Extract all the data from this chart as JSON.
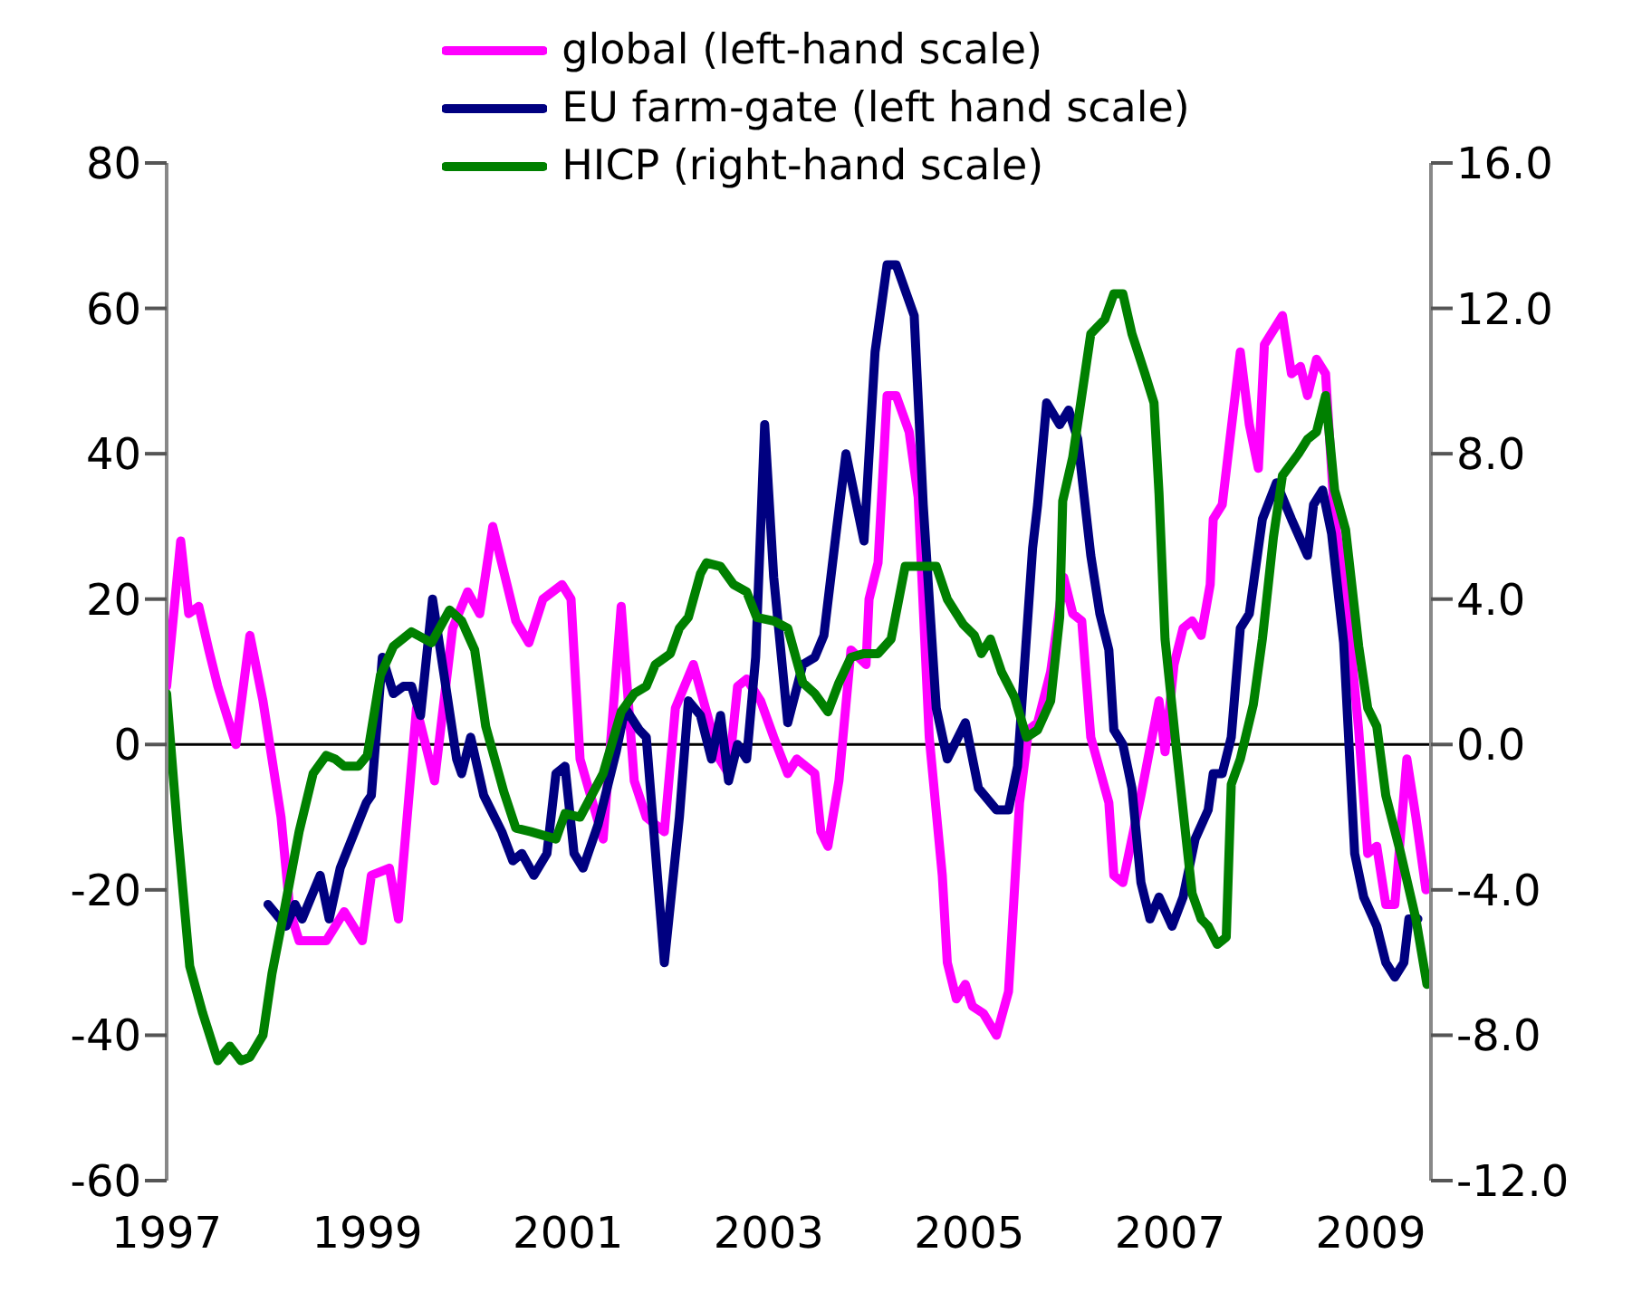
{
  "chart_data": {
    "type": "line",
    "xlim": [
      1997,
      2009.6
    ],
    "xticks": [
      1997,
      1999,
      2001,
      2003,
      2005,
      2007,
      2009
    ],
    "ylim": [
      -60,
      80
    ],
    "yticks": [
      -60,
      -40,
      -20,
      0,
      20,
      40,
      60,
      80
    ],
    "y2lim": [
      -12,
      16
    ],
    "y2ticks": [
      {
        "value": -12,
        "label": "-12.0"
      },
      {
        "value": -8,
        "label": "-8.0"
      },
      {
        "value": -4,
        "label": "-4.0"
      },
      {
        "value": 0,
        "label": "0.0"
      },
      {
        "value": 4,
        "label": "4.0"
      },
      {
        "value": 8,
        "label": "8.0"
      },
      {
        "value": 12,
        "label": "12.0"
      },
      {
        "value": 16,
        "label": "16.0"
      }
    ],
    "legend": "top",
    "marker": "none",
    "line_style": "solid",
    "ref_lines": [
      {
        "axis": "y",
        "value": 0,
        "color": "#000000"
      }
    ],
    "series": [
      {
        "name": "global (left-hand scale)",
        "color": "#ff00ff",
        "x": [
          1997.0,
          1997.14,
          1997.22,
          1997.32,
          1997.42,
          1997.51,
          1997.69,
          1997.83,
          1997.96,
          1998.14,
          1998.23,
          1998.32,
          1998.59,
          1998.77,
          1998.95,
          1999.04,
          1999.22,
          1999.31,
          1999.49,
          1999.67,
          1999.85,
          2000.0,
          2000.12,
          2000.25,
          2000.48,
          2000.61,
          2000.75,
          2000.94,
          2001.03,
          2001.12,
          2001.35,
          2001.53,
          2001.66,
          2001.78,
          2001.96,
          2002.07,
          2002.25,
          2002.51,
          2002.6,
          2002.69,
          2002.78,
          2002.92,
          2003.05,
          2003.19,
          2003.28,
          2003.46,
          2003.52,
          2003.59,
          2003.7,
          2003.82,
          2003.97,
          2004.0,
          2004.09,
          2004.18,
          2004.27,
          2004.4,
          2004.49,
          2004.6,
          2004.73,
          2004.78,
          2004.87,
          2004.96,
          2005.03,
          2005.14,
          2005.27,
          2005.39,
          2005.5,
          2005.59,
          2005.68,
          2005.81,
          2005.94,
          2006.03,
          2006.12,
          2006.21,
          2006.39,
          2006.44,
          2006.53,
          2006.71,
          2006.89,
          2006.95,
          2007.04,
          2007.13,
          2007.22,
          2007.31,
          2007.4,
          2007.43,
          2007.52,
          2007.7,
          2007.79,
          2007.88,
          2007.94,
          2008.12,
          2008.21,
          2008.3,
          2008.37,
          2008.46,
          2008.55,
          2008.64,
          2008.75,
          2008.88,
          2008.97,
          2009.06,
          2009.15,
          2009.24,
          2009.36,
          2009.45,
          2009.55
        ],
        "values": [
          8,
          28,
          18,
          19,
          13,
          8,
          0,
          15,
          6,
          -10,
          -23,
          -27,
          -27,
          -23,
          -27,
          -18,
          -17,
          -24,
          5,
          -5,
          16,
          21,
          18,
          30,
          17,
          14,
          20,
          22,
          20,
          -2,
          -13,
          19,
          -5,
          -10,
          -12,
          5,
          11,
          -2,
          -4,
          8,
          9,
          6,
          1,
          -4,
          -2,
          -4,
          -12,
          -14,
          -5,
          13,
          11,
          20,
          25,
          48,
          48,
          43,
          34,
          1,
          -18,
          -30,
          -35,
          -33,
          -36,
          -37,
          -40,
          -34,
          -8,
          2,
          3,
          10,
          23,
          18,
          17,
          1,
          -8,
          -18,
          -19,
          -7,
          6,
          -1,
          11,
          16,
          17,
          15,
          22,
          31,
          33,
          54,
          44,
          38,
          55,
          59,
          51,
          52,
          48,
          53,
          51,
          31,
          21,
          2,
          -15,
          -14,
          -22,
          -22,
          -2,
          -10,
          -20
        ]
      },
      {
        "name": "EU farm-gate (left hand scale)",
        "color": "#000080",
        "x": [
          1998.01,
          1998.19,
          1998.28,
          1998.35,
          1998.53,
          1998.62,
          1998.73,
          1998.99,
          1999.04,
          1999.15,
          1999.26,
          1999.36,
          1999.44,
          1999.53,
          1999.65,
          1999.76,
          1999.89,
          1999.94,
          2000.03,
          2000.16,
          2000.34,
          2000.45,
          2000.54,
          2000.66,
          2000.79,
          2000.88,
          2000.97,
          2001.06,
          2001.15,
          2001.3,
          2001.48,
          2001.57,
          2001.71,
          2001.78,
          2001.96,
          2002.11,
          2002.2,
          2002.32,
          2002.43,
          2002.52,
          2002.6,
          2002.69,
          2002.78,
          2002.87,
          2002.96,
          2003.05,
          2003.19,
          2003.34,
          2003.46,
          2003.55,
          2003.68,
          2003.77,
          2003.95,
          2004.06,
          2004.18,
          2004.27,
          2004.45,
          2004.54,
          2004.67,
          2004.78,
          2004.96,
          2005.09,
          2005.27,
          2005.39,
          2005.48,
          2005.63,
          2005.68,
          2005.77,
          2005.9,
          2005.99,
          2006.08,
          2006.21,
          2006.3,
          2006.39,
          2006.44,
          2006.53,
          2006.62,
          2006.71,
          2006.8,
          2006.89,
          2007.02,
          2007.13,
          2007.25,
          2007.38,
          2007.43,
          2007.52,
          2007.61,
          2007.7,
          2007.79,
          2007.92,
          2008.06,
          2008.21,
          2008.37,
          2008.43,
          2008.52,
          2008.61,
          2008.73,
          2008.84,
          2008.93,
          2009.06,
          2009.15,
          2009.24,
          2009.33,
          2009.38,
          2009.47
        ],
        "values": [
          -22,
          -25,
          -22,
          -24,
          -18,
          -24,
          -17,
          -8,
          -7,
          12,
          7,
          8,
          8,
          4,
          20,
          10,
          -2,
          -4,
          1,
          -7,
          -12,
          -16,
          -15,
          -18,
          -15,
          -4,
          -3,
          -15,
          -17,
          -11,
          -1,
          5,
          2,
          1,
          -30,
          -10,
          6,
          4,
          -2,
          4,
          -5,
          0,
          -2,
          12,
          44,
          23,
          3,
          11,
          12,
          15,
          30,
          40,
          28,
          54,
          66,
          66,
          59,
          33,
          5,
          -2,
          3,
          -6,
          -9,
          -9,
          -3,
          27,
          33,
          47,
          44,
          46,
          42,
          26,
          18,
          13,
          2,
          0,
          -6,
          -19,
          -24,
          -21,
          -25,
          -21,
          -13,
          -9,
          -4,
          -4,
          1,
          16,
          18,
          31,
          36,
          31,
          26,
          33,
          35,
          29,
          14,
          -15,
          -21,
          -25,
          -30,
          -32,
          -30,
          -24,
          -24
        ]
      },
      {
        "name": "HICP (right-hand scale)",
        "color": "#008000",
        "axis": "y2",
        "x": [
          1997.0,
          1997.11,
          1997.23,
          1997.36,
          1997.51,
          1997.63,
          1997.74,
          1997.83,
          1997.96,
          1998.05,
          1998.17,
          1998.32,
          1998.46,
          1998.59,
          1998.68,
          1998.77,
          1998.91,
          1999.0,
          1999.13,
          1999.26,
          1999.44,
          1999.64,
          1999.82,
          1999.94,
          2000.07,
          2000.18,
          2000.36,
          2000.48,
          2000.63,
          2000.88,
          2000.97,
          2001.12,
          2001.35,
          2001.53,
          2001.66,
          2001.78,
          2001.87,
          2002.02,
          2002.11,
          2002.2,
          2002.32,
          2002.38,
          2002.52,
          2002.65,
          2002.78,
          2002.88,
          2003.05,
          2003.19,
          2003.34,
          2003.46,
          2003.59,
          2003.7,
          2003.82,
          2003.95,
          2004.09,
          2004.22,
          2004.36,
          2004.67,
          2004.78,
          2004.94,
          2005.05,
          2005.12,
          2005.21,
          2005.32,
          2005.45,
          2005.57,
          2005.68,
          2005.81,
          2005.9,
          2005.93,
          2006.03,
          2006.21,
          2006.35,
          2006.44,
          2006.53,
          2006.62,
          2006.75,
          2006.84,
          2006.89,
          2006.95,
          2007.07,
          2007.22,
          2007.31,
          2007.38,
          2007.47,
          2007.56,
          2007.61,
          2007.7,
          2007.83,
          2007.92,
          2008.03,
          2008.12,
          2008.28,
          2008.37,
          2008.46,
          2008.55,
          2008.64,
          2008.75,
          2008.88,
          2008.97,
          2009.06,
          2009.15,
          2009.29,
          2009.45,
          2009.56
        ],
        "values": [
          1.4,
          -2.4,
          -6.1,
          -7.4,
          -8.7,
          -8.3,
          -8.7,
          -8.6,
          -8.0,
          -6.3,
          -4.6,
          -2.4,
          -0.8,
          -0.3,
          -0.4,
          -0.6,
          -0.6,
          -0.3,
          1.9,
          2.7,
          3.1,
          2.8,
          3.7,
          3.4,
          2.6,
          0.5,
          -1.3,
          -2.3,
          -2.4,
          -2.6,
          -1.9,
          -2.0,
          -0.8,
          0.9,
          1.4,
          1.6,
          2.2,
          2.5,
          3.2,
          3.5,
          4.7,
          5.0,
          4.9,
          4.4,
          4.2,
          3.5,
          3.4,
          3.2,
          1.7,
          1.4,
          0.9,
          1.7,
          2.4,
          2.5,
          2.5,
          2.9,
          4.9,
          4.9,
          4.0,
          3.3,
          3.0,
          2.5,
          2.9,
          2.0,
          1.3,
          0.2,
          0.4,
          1.2,
          3.5,
          6.7,
          7.9,
          11.3,
          11.7,
          12.4,
          12.4,
          11.3,
          10.2,
          9.4,
          6.9,
          2.9,
          -0.3,
          -4.1,
          -4.8,
          -5.0,
          -5.5,
          -5.3,
          -1.1,
          -0.4,
          1.1,
          2.9,
          5.7,
          7.4,
          8.0,
          8.4,
          8.6,
          9.6,
          7.0,
          5.9,
          2.7,
          1.0,
          0.5,
          -1.4,
          -2.9,
          -4.8,
          -6.6
        ]
      }
    ]
  }
}
